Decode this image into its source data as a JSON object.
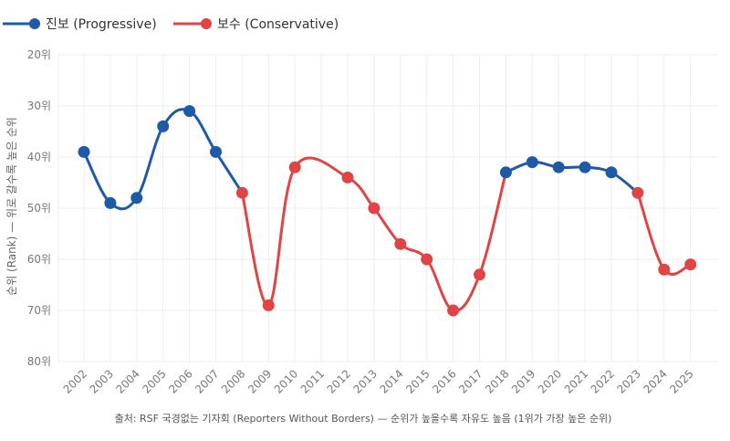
{
  "chart_data": {
    "type": "line",
    "title": "",
    "xlabel": "",
    "ylabel": "순위 (Rank) — 위로 갈수록 높은 순위",
    "y_reversed": true,
    "ylim": [
      20,
      80
    ],
    "yticks": [
      20,
      30,
      40,
      50,
      60,
      70,
      80
    ],
    "ytick_suffix": "위",
    "grid": true,
    "legend_position": "top-left",
    "categories": [
      "2002",
      "2003",
      "2004",
      "2005",
      "2006",
      "2007",
      "2008",
      "2009",
      "2010",
      "2011",
      "2012",
      "2013",
      "2014",
      "2015",
      "2016",
      "2017",
      "2018",
      "2019",
      "2020",
      "2021",
      "2022",
      "2023",
      "2024",
      "2025"
    ],
    "series": [
      {
        "name": "진보 (Progressive)",
        "color": "#1f5aa6",
        "points": [
          {
            "x": "2002",
            "y": 39
          },
          {
            "x": "2003",
            "y": 49
          },
          {
            "x": "2004",
            "y": 48
          },
          {
            "x": "2005",
            "y": 34
          },
          {
            "x": "2006",
            "y": 31
          },
          {
            "x": "2007",
            "y": 39
          },
          {
            "x": "2018",
            "y": 43
          },
          {
            "x": "2019",
            "y": 41
          },
          {
            "x": "2020",
            "y": 42
          },
          {
            "x": "2021",
            "y": 42
          },
          {
            "x": "2022",
            "y": 43
          }
        ]
      },
      {
        "name": "보수 (Conservative)",
        "color": "#e04444",
        "points": [
          {
            "x": "2008",
            "y": 47
          },
          {
            "x": "2009",
            "y": 69
          },
          {
            "x": "2010",
            "y": 42
          },
          {
            "x": "2012",
            "y": 44
          },
          {
            "x": "2013",
            "y": 50
          },
          {
            "x": "2014",
            "y": 57
          },
          {
            "x": "2015",
            "y": 60
          },
          {
            "x": "2016",
            "y": 70
          },
          {
            "x": "2017",
            "y": 63
          },
          {
            "x": "2023",
            "y": 47
          },
          {
            "x": "2024",
            "y": 62
          },
          {
            "x": "2025",
            "y": 61
          }
        ]
      }
    ],
    "line_segments": [
      {
        "series": 0,
        "years": [
          "2002",
          "2003",
          "2004",
          "2005",
          "2006",
          "2007",
          "2008"
        ]
      },
      {
        "series": 1,
        "years": [
          "2008",
          "2009",
          "2010",
          "2012",
          "2013",
          "2014",
          "2015",
          "2016",
          "2017",
          "2018"
        ]
      },
      {
        "series": 0,
        "years": [
          "2018",
          "2019",
          "2020",
          "2021",
          "2022",
          "2023"
        ]
      },
      {
        "series": 1,
        "years": [
          "2023",
          "2024",
          "2025"
        ]
      }
    ],
    "source_note": "출처: RSF 국경없는 기자회 (Reporters Without Borders) — 순위가 높을수록 자유도 높음 (1위가 가장 높은 순위)"
  }
}
